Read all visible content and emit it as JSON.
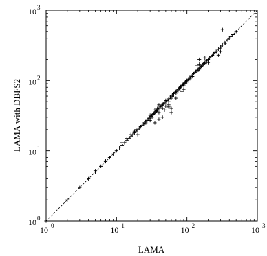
{
  "chart_data": {
    "type": "scatter",
    "title": "",
    "xlabel": "LAMA",
    "ylabel": "LAMA with DBFS2",
    "xscale": "log",
    "yscale": "log",
    "xlim": [
      1,
      1000
    ],
    "ylim": [
      1,
      1000
    ],
    "grid": false,
    "legend": "none",
    "marker": "+",
    "reference_line": {
      "style": "dashed",
      "from": [
        1,
        1
      ],
      "to": [
        1000,
        1000
      ]
    },
    "x_ticks": [
      {
        "value": 1,
        "base": "10",
        "exp": "0"
      },
      {
        "value": 10,
        "base": "10",
        "exp": "1"
      },
      {
        "value": 100,
        "base": "10",
        "exp": "2"
      },
      {
        "value": 1000,
        "base": "10",
        "exp": "3"
      }
    ],
    "y_ticks": [
      {
        "value": 1,
        "base": "10",
        "exp": "0"
      },
      {
        "value": 10,
        "base": "10",
        "exp": "1"
      },
      {
        "value": 100,
        "base": "10",
        "exp": "2"
      },
      {
        "value": 1000,
        "base": "10",
        "exp": "3"
      }
    ],
    "points": [
      [
        1,
        1
      ],
      [
        2,
        2
      ],
      [
        3,
        3
      ],
      [
        4,
        4
      ],
      [
        5,
        5
      ],
      [
        5,
        5.2
      ],
      [
        6,
        6
      ],
      [
        7,
        7
      ],
      [
        7,
        7.2
      ],
      [
        8,
        8
      ],
      [
        9,
        9
      ],
      [
        10,
        10
      ],
      [
        11,
        11
      ],
      [
        12,
        12
      ],
      [
        12,
        13
      ],
      [
        13,
        13
      ],
      [
        14,
        14
      ],
      [
        14,
        15
      ],
      [
        15,
        15
      ],
      [
        16,
        16
      ],
      [
        16,
        17
      ],
      [
        17,
        17
      ],
      [
        18,
        18
      ],
      [
        18,
        19
      ],
      [
        19,
        19
      ],
      [
        19,
        20
      ],
      [
        20,
        20
      ],
      [
        20,
        17
      ],
      [
        21,
        21
      ],
      [
        22,
        22
      ],
      [
        23,
        23
      ],
      [
        24,
        24
      ],
      [
        25,
        25
      ],
      [
        25,
        24
      ],
      [
        26,
        26
      ],
      [
        26,
        25
      ],
      [
        27,
        27
      ],
      [
        28,
        28
      ],
      [
        29,
        29
      ],
      [
        30,
        30
      ],
      [
        30,
        32
      ],
      [
        30,
        27
      ],
      [
        31,
        31
      ],
      [
        32,
        32
      ],
      [
        32,
        30
      ],
      [
        33,
        33
      ],
      [
        34,
        34
      ],
      [
        35,
        35
      ],
      [
        35,
        38
      ],
      [
        35,
        25
      ],
      [
        36,
        36
      ],
      [
        37,
        37
      ],
      [
        38,
        38
      ],
      [
        38,
        40
      ],
      [
        40,
        40
      ],
      [
        40,
        45
      ],
      [
        40,
        35
      ],
      [
        40,
        28
      ],
      [
        42,
        42
      ],
      [
        44,
        44
      ],
      [
        45,
        45
      ],
      [
        45,
        40
      ],
      [
        46,
        47
      ],
      [
        48,
        48
      ],
      [
        50,
        50
      ],
      [
        50,
        52
      ],
      [
        50,
        43
      ],
      [
        52,
        52
      ],
      [
        55,
        55
      ],
      [
        55,
        50
      ],
      [
        55,
        45
      ],
      [
        58,
        58
      ],
      [
        60,
        60
      ],
      [
        60,
        56
      ],
      [
        60,
        35
      ],
      [
        62,
        62
      ],
      [
        65,
        65
      ],
      [
        65,
        62
      ],
      [
        68,
        68
      ],
      [
        70,
        70
      ],
      [
        70,
        66
      ],
      [
        72,
        72
      ],
      [
        75,
        75
      ],
      [
        75,
        72
      ],
      [
        78,
        78
      ],
      [
        80,
        80
      ],
      [
        80,
        76
      ],
      [
        82,
        82
      ],
      [
        85,
        85
      ],
      [
        88,
        88
      ],
      [
        90,
        90
      ],
      [
        90,
        86
      ],
      [
        92,
        92
      ],
      [
        95,
        95
      ],
      [
        98,
        98
      ],
      [
        100,
        100
      ],
      [
        100,
        95
      ],
      [
        105,
        105
      ],
      [
        110,
        110
      ],
      [
        110,
        106
      ],
      [
        115,
        115
      ],
      [
        120,
        120
      ],
      [
        120,
        114
      ],
      [
        125,
        125
      ],
      [
        130,
        130
      ],
      [
        135,
        135
      ],
      [
        140,
        140
      ],
      [
        140,
        135
      ],
      [
        145,
        145
      ],
      [
        150,
        150
      ],
      [
        150,
        145
      ],
      [
        155,
        155
      ],
      [
        160,
        160
      ],
      [
        165,
        165
      ],
      [
        170,
        170
      ],
      [
        175,
        175
      ],
      [
        180,
        180
      ],
      [
        190,
        190
      ],
      [
        190,
        183
      ],
      [
        200,
        200
      ],
      [
        210,
        210
      ],
      [
        220,
        220
      ],
      [
        230,
        230
      ],
      [
        240,
        240
      ],
      [
        250,
        250
      ],
      [
        260,
        260
      ],
      [
        280,
        280
      ],
      [
        300,
        300
      ],
      [
        310,
        300
      ],
      [
        320,
        320
      ],
      [
        340,
        345
      ],
      [
        350,
        340
      ],
      [
        380,
        380
      ],
      [
        400,
        400
      ],
      [
        420,
        420
      ],
      [
        450,
        450
      ],
      [
        500,
        500
      ],
      [
        320,
        530
      ],
      [
        150,
        170
      ],
      [
        140,
        165
      ],
      [
        90,
        75
      ],
      [
        85,
        70
      ],
      [
        60,
        40
      ],
      [
        55,
        42
      ],
      [
        70,
        56
      ],
      [
        45,
        30
      ],
      [
        48,
        38
      ],
      [
        150,
        200
      ],
      [
        180,
        210
      ],
      [
        200,
        180
      ],
      [
        300,
        260
      ],
      [
        280,
        230
      ]
    ]
  }
}
